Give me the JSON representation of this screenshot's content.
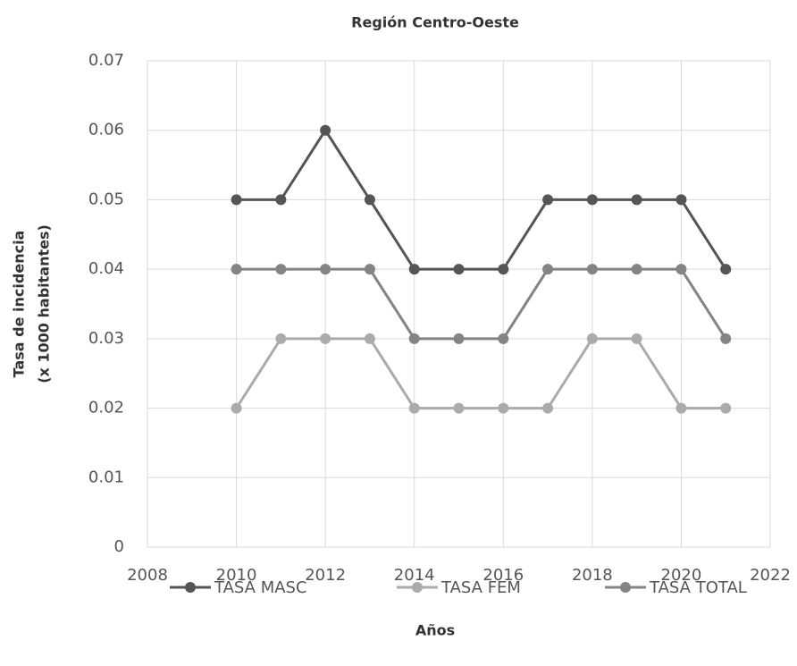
{
  "chart_data": {
    "type": "line",
    "title": "Región Centro-Oeste",
    "xlabel": "Años",
    "ylabel": [
      "Tasa de incidencia",
      "(x 1000 habitantes)"
    ],
    "x": [
      2010,
      2011,
      2012,
      2013,
      2014,
      2015,
      2016,
      2017,
      2018,
      2019,
      2020,
      2021
    ],
    "series": [
      {
        "name": "TASA MASC",
        "color": "#555555",
        "values": [
          0.05,
          0.05,
          0.06,
          0.05,
          0.04,
          0.04,
          0.04,
          0.05,
          0.05,
          0.05,
          0.05,
          0.04
        ]
      },
      {
        "name": "TASA FEM",
        "color": "#ababab",
        "values": [
          0.02,
          0.03,
          0.03,
          0.03,
          0.02,
          0.02,
          0.02,
          0.02,
          0.03,
          0.03,
          0.02,
          0.02
        ]
      },
      {
        "name": "TASA TOTAL",
        "color": "#848484",
        "values": [
          0.04,
          0.04,
          0.04,
          0.04,
          0.03,
          0.03,
          0.03,
          0.04,
          0.04,
          0.04,
          0.04,
          0.03
        ]
      }
    ],
    "xlim": [
      2008,
      2022
    ],
    "xticks": [
      2008,
      2010,
      2012,
      2014,
      2016,
      2018,
      2020,
      2022
    ],
    "ylim": [
      0,
      0.07
    ],
    "yticks": [
      0,
      0.01,
      0.02,
      0.03,
      0.04,
      0.05,
      0.06,
      0.07
    ],
    "grid": true,
    "legend": "bottom"
  }
}
